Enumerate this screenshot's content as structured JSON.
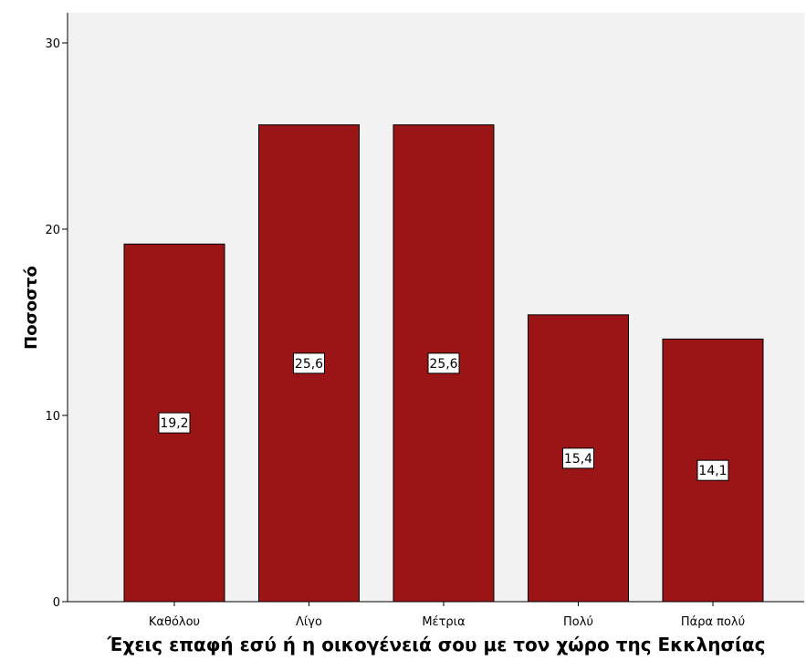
{
  "chart_data": {
    "type": "bar",
    "categories": [
      "Καθόλου",
      "Λίγο",
      "Μέτρια",
      "Πολύ",
      "Πάρα πολύ"
    ],
    "values": [
      19.2,
      25.6,
      25.6,
      15.4,
      14.1
    ],
    "data_labels": [
      "19,2",
      "25,6",
      "25,6",
      "15,4",
      "14,1"
    ],
    "xlabel": "Έχεις επαφή εσύ ή η οικογένειά σου με τον χώρο της Εκκλησίας",
    "ylabel": "Ποσοστό",
    "ylim": [
      0,
      30
    ],
    "yticks": [
      0,
      10,
      20,
      30
    ],
    "grid": false,
    "colors": {
      "bar": "#9B1416",
      "plot_background": "#F2F2F2"
    }
  }
}
